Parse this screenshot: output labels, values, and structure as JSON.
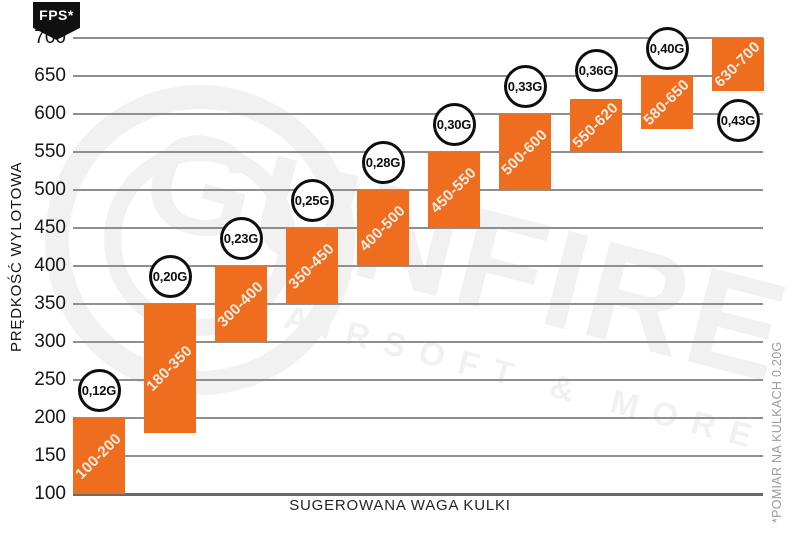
{
  "badge": {
    "label": "FPS*"
  },
  "watermark": {
    "brand": "GUNFIRE",
    "tagline": "AIRSOFT & MORE",
    "registered": "®"
  },
  "colors": {
    "bar_orange": "#ee6d1e",
    "grid_line": "#8f8f8f",
    "axis_line": "#6a6a6a",
    "circle_border": "#0e0e0e",
    "footnote_gray": "#9a9a9a",
    "watermark_gray": "#f1f1f1",
    "badge_black": "#101010"
  },
  "chart_data": {
    "type": "bar",
    "subtype": "floating-range-bars",
    "title": "",
    "xlabel": "SUGEROWANA WAGA KULKI",
    "ylabel": "PRĘDKOŚĆ WYLOTOWA",
    "y_unit_badge": "FPS*",
    "ylim": [
      100,
      700
    ],
    "y_ticks": [
      700,
      650,
      600,
      550,
      500,
      450,
      400,
      350,
      300,
      250,
      200,
      150,
      100
    ],
    "grid": true,
    "legend": "none",
    "footnote": "*POMIAR NA KULKACH 0.20G",
    "series": [
      {
        "weight": "0,12G",
        "fps_min": 100,
        "fps_max": 200,
        "range_label": "100-200",
        "circle_position": "above"
      },
      {
        "weight": "0,20G",
        "fps_min": 180,
        "fps_max": 350,
        "range_label": "180-350",
        "circle_position": "above"
      },
      {
        "weight": "0,23G",
        "fps_min": 300,
        "fps_max": 400,
        "range_label": "300-400",
        "circle_position": "above"
      },
      {
        "weight": "0,25G",
        "fps_min": 350,
        "fps_max": 450,
        "range_label": "350-450",
        "circle_position": "above"
      },
      {
        "weight": "0,28G",
        "fps_min": 400,
        "fps_max": 500,
        "range_label": "400-500",
        "circle_position": "above"
      },
      {
        "weight": "0,30G",
        "fps_min": 450,
        "fps_max": 550,
        "range_label": "450-550",
        "circle_position": "above"
      },
      {
        "weight": "0,33G",
        "fps_min": 500,
        "fps_max": 600,
        "range_label": "500-600",
        "circle_position": "above"
      },
      {
        "weight": "0,36G",
        "fps_min": 550,
        "fps_max": 620,
        "range_label": "550-620",
        "circle_position": "above"
      },
      {
        "weight": "0,40G",
        "fps_min": 580,
        "fps_max": 650,
        "range_label": "580-650",
        "circle_position": "above"
      },
      {
        "weight": "0,43G",
        "fps_min": 630,
        "fps_max": 700,
        "range_label": "630-700",
        "circle_position": "below"
      }
    ]
  }
}
